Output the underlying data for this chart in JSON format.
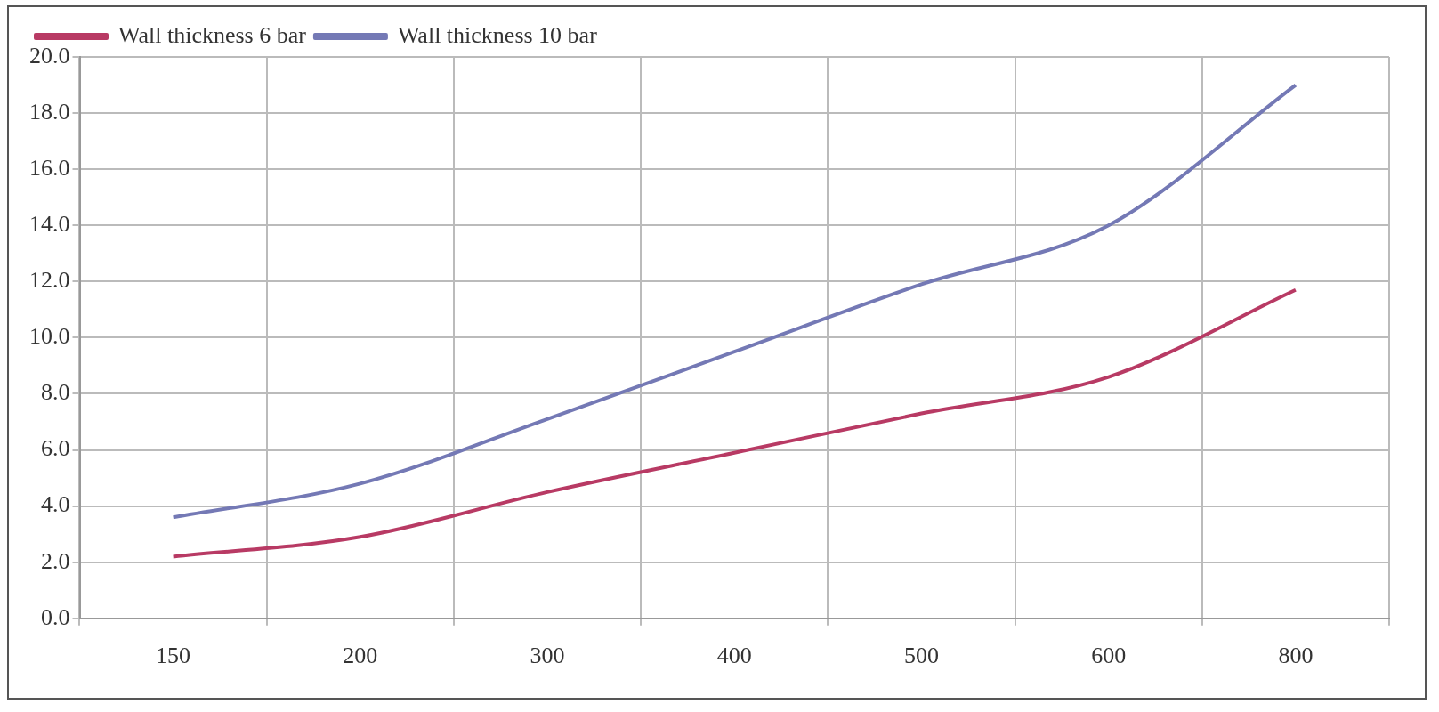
{
  "chart_data": {
    "type": "line",
    "categories": [
      "150",
      "200",
      "300",
      "400",
      "500",
      "600",
      "800"
    ],
    "series": [
      {
        "name": "Wall thickness 6 bar",
        "color": "#b83a64",
        "values": [
          2.2,
          2.9,
          4.5,
          5.9,
          7.3,
          8.6,
          11.7
        ]
      },
      {
        "name": "Wall thickness 10 bar",
        "color": "#7479b5",
        "values": [
          3.6,
          4.8,
          7.1,
          9.5,
          11.9,
          14.0,
          19.0
        ]
      }
    ],
    "ylim": [
      0,
      20
    ],
    "yticks": [
      {
        "value": 0,
        "label": "0.0"
      },
      {
        "value": 2,
        "label": "2.0"
      },
      {
        "value": 4,
        "label": "4.0"
      },
      {
        "value": 6,
        "label": "6.0"
      },
      {
        "value": 8,
        "label": "8.0"
      },
      {
        "value": 10,
        "label": "10.0"
      },
      {
        "value": 12,
        "label": "12.0"
      },
      {
        "value": 14,
        "label": "14.0"
      },
      {
        "value": 16,
        "label": "16.0"
      },
      {
        "value": 18,
        "label": "18.0"
      },
      {
        "value": 20,
        "label": "20.0"
      }
    ],
    "grid": true,
    "legend": "top left",
    "marker": "none",
    "line_style": "solid"
  }
}
